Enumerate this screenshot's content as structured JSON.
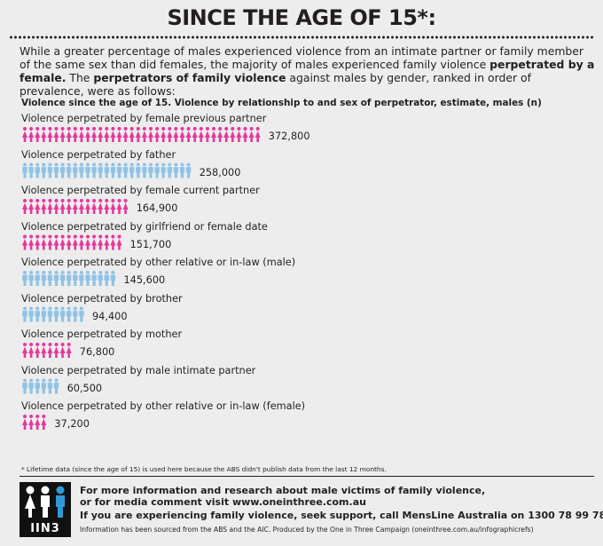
{
  "header": {
    "title": "SINCE THE AGE OF 15*:"
  },
  "intro": {
    "text1": "While a greater percentage of males experienced violence from an intimate partner or family member of the same sex than did females, the majority of males experienced family violence ",
    "bold1": "perpetrated by a female.",
    "text2": " The ",
    "bold2": "perpetrators of family violence",
    "text3": " against males by gender, ranked in order of prevalence, were as follows:"
  },
  "chart_data": {
    "type": "bar",
    "title": "Violence since the age of 15. Violence by relationship to and sex of perpetrator, estimate, males (n)",
    "categories": [
      "Violence perpetrated by female previous partner",
      "Violence perpetrated by father",
      "Violence perpetrated by female current partner",
      "Violence perpetrated by girlfriend or female date",
      "Violence perpetrated by other relative or in-law (male)",
      "Violence perpetrated by brother",
      "Violence perpetrated by mother",
      "Violence perpetrated by male intimate partner",
      "Violence perpetrated by other relative or in-law (female)"
    ],
    "values": [
      372800,
      258000,
      164900,
      151700,
      145600,
      94400,
      76800,
      60500,
      37200
    ],
    "value_labels": [
      "372,800",
      "258,000",
      "164,900",
      "151,700",
      "145,600",
      "94,400",
      "76,800",
      "60,500",
      "37,200"
    ],
    "perpetrator_gender": [
      "female",
      "male",
      "female",
      "female",
      "male",
      "male",
      "female",
      "male",
      "female"
    ],
    "xlabel": "",
    "ylabel": "",
    "unit_per_icon": 10000
  },
  "colors": {
    "female": "#e8379b",
    "male": "#8fc3e6",
    "text": "#231f20"
  },
  "footer": {
    "footnote": "* Lifetime data (since the age of 15) is used here because the ABS didn't publish data from the last 12 months.",
    "logo_text": "IIN3",
    "info_line1": "For more information and research about male victims of family violence,",
    "info_line2": "or for media comment visit www.oneinthree.com.au",
    "support_line": "If you are experiencing family violence, seek support, call MensLine Australia on 1300 78 99 78",
    "source_line": "Information has been sourced from the ABS and the AIC. Produced by the One in Three Campaign (oneinthree.com.au/infographicrefs)"
  }
}
